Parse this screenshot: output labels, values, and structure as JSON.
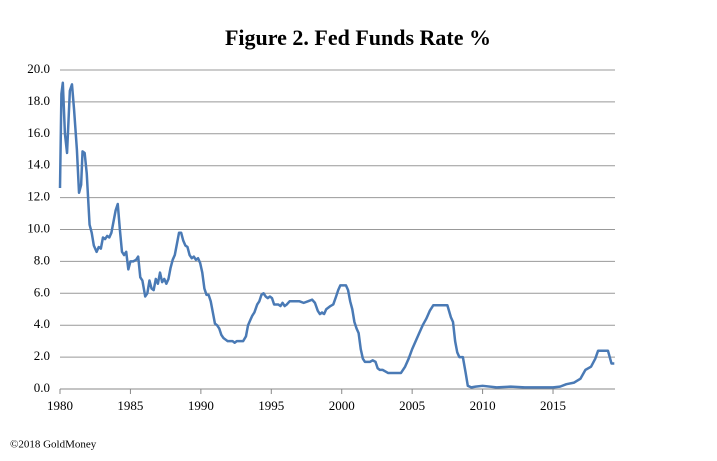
{
  "chart_data": {
    "type": "line",
    "title": "Figure 2. Fed Funds Rate %",
    "footnote": "©2018 GoldMoney",
    "x": [
      1980.0,
      1980.1,
      1980.2,
      1980.35,
      1980.5,
      1980.7,
      1980.85,
      1981.0,
      1981.2,
      1981.35,
      1981.5,
      1981.6,
      1981.75,
      1981.9,
      1982.1,
      1982.25,
      1982.4,
      1982.6,
      1982.75,
      1982.9,
      1983.05,
      1983.2,
      1983.35,
      1983.5,
      1983.65,
      1983.8,
      1983.95,
      1984.1,
      1984.25,
      1984.4,
      1984.55,
      1984.7,
      1984.85,
      1985.0,
      1985.2,
      1985.4,
      1985.55,
      1985.7,
      1985.85,
      1986.05,
      1986.2,
      1986.35,
      1986.5,
      1986.65,
      1986.8,
      1986.95,
      1987.1,
      1987.25,
      1987.4,
      1987.55,
      1987.7,
      1987.85,
      1988.0,
      1988.15,
      1988.3,
      1988.45,
      1988.6,
      1988.75,
      1988.9,
      1989.05,
      1989.2,
      1989.35,
      1989.5,
      1989.65,
      1989.8,
      1989.95,
      1990.1,
      1990.25,
      1990.4,
      1990.55,
      1990.7,
      1990.85,
      1991.0,
      1991.15,
      1991.3,
      1991.45,
      1991.6,
      1991.75,
      1991.9,
      1992.1,
      1992.25,
      1992.4,
      1992.55,
      1992.7,
      1992.85,
      1993.0,
      1993.2,
      1993.35,
      1993.5,
      1993.65,
      1993.8,
      1994.0,
      1994.15,
      1994.3,
      1994.45,
      1994.6,
      1994.75,
      1994.9,
      1995.05,
      1995.2,
      1995.35,
      1995.5,
      1995.65,
      1995.8,
      1995.95,
      1996.1,
      1996.3,
      1996.5,
      1996.8,
      1997.0,
      1997.3,
      1997.6,
      1997.9,
      1998.1,
      1998.3,
      1998.45,
      1998.6,
      1998.75,
      1998.9,
      1999.05,
      1999.2,
      1999.4,
      1999.6,
      1999.75,
      1999.9,
      2000.1,
      2000.3,
      2000.45,
      2000.6,
      2000.75,
      2000.9,
      2001.05,
      2001.2,
      2001.35,
      2001.5,
      2001.65,
      2001.8,
      2002.0,
      2002.2,
      2002.4,
      2002.55,
      2002.7,
      2002.9,
      2003.1,
      2003.3,
      2003.6,
      2003.9,
      2004.2,
      2004.5,
      2004.75,
      2005.0,
      2005.25,
      2005.5,
      2005.75,
      2006.0,
      2006.25,
      2006.5,
      2006.75,
      2007.0,
      2007.25,
      2007.5,
      2007.75,
      2007.9,
      2008.05,
      2008.2,
      2008.35,
      2008.6,
      2008.8,
      2008.95,
      2009.2,
      2009.5,
      2010.0,
      2011.0,
      2012.0,
      2013.0,
      2014.0,
      2015.0,
      2015.5,
      2015.95,
      2016.5,
      2016.95,
      2017.3,
      2017.7,
      2018.0,
      2018.2,
      2018.9,
      2019.15,
      2019.35
    ],
    "series": [
      {
        "name": "Fed Funds Rate",
        "color": "#4a7ab5",
        "values": [
          12.6,
          18.5,
          19.2,
          16,
          14.8,
          18.7,
          19.1,
          17.5,
          15,
          12.3,
          12.8,
          14.9,
          14.8,
          13.5,
          10.3,
          9.8,
          9,
          8.6,
          8.9,
          8.8,
          9.5,
          9.4,
          9.6,
          9.5,
          9.8,
          10.5,
          11.2,
          11.6,
          10,
          8.6,
          8.4,
          8.6,
          7.5,
          8.0,
          8.0,
          8.1,
          8.3,
          7.0,
          6.8,
          5.8,
          6.0,
          6.8,
          6.3,
          6.2,
          6.9,
          6.6,
          7.3,
          6.7,
          6.9,
          6.6,
          6.9,
          7.6,
          8.1,
          8.4,
          9.1,
          9.8,
          9.8,
          9.3,
          9.0,
          8.9,
          8.4,
          8.2,
          8.3,
          8.1,
          8.2,
          7.9,
          7.3,
          6.3,
          5.9,
          5.9,
          5.5,
          4.8,
          4.1,
          4.0,
          3.8,
          3.4,
          3.2,
          3.1,
          3.0,
          3.0,
          3.0,
          2.9,
          3.0,
          3.0,
          3.0,
          3.0,
          3.3,
          4.0,
          4.3,
          4.6,
          4.8,
          5.3,
          5.5,
          5.9,
          6.0,
          5.8,
          5.7,
          5.8,
          5.7,
          5.3,
          5.3,
          5.3,
          5.2,
          5.4,
          5.2,
          5.3,
          5.5,
          5.5,
          5.5,
          5.5,
          5.4,
          5.5,
          5.6,
          5.4,
          4.9,
          4.7,
          4.8,
          4.7,
          5.0,
          5.1,
          5.2,
          5.3,
          5.8,
          6.2,
          6.5,
          6.5,
          6.5,
          6.2,
          5.5,
          5.0,
          4.2,
          3.8,
          3.5,
          2.5,
          1.9,
          1.7,
          1.7,
          1.7,
          1.8,
          1.7,
          1.3,
          1.2,
          1.2,
          1.1,
          1.0,
          1.0,
          1.0,
          1.0,
          1.4,
          1.9,
          2.5,
          3.0,
          3.5,
          4.0,
          4.4,
          4.9,
          5.25,
          5.25,
          5.25,
          5.25,
          5.25,
          4.5,
          4.2,
          3.0,
          2.3,
          2.0,
          2.0,
          1.0,
          0.2,
          0.1,
          0.15,
          0.2,
          0.1,
          0.15,
          0.1,
          0.1,
          0.1,
          0.15,
          0.3,
          0.4,
          0.65,
          1.2,
          1.4,
          1.9,
          2.4,
          2.4,
          1.6,
          1.6
        ]
      }
    ],
    "xlim": [
      1980,
      2019.4
    ],
    "xticks": [
      1980,
      1985,
      1990,
      1995,
      2000,
      2005,
      2010,
      2015
    ],
    "ylim": [
      0,
      20
    ],
    "yticks": [
      {
        "value": 0,
        "label": "0.0"
      },
      {
        "value": 2,
        "label": "2.0"
      },
      {
        "value": 4,
        "label": "4.0"
      },
      {
        "value": 6,
        "label": "6.0"
      },
      {
        "value": 8,
        "label": "8.0"
      },
      {
        "value": 10,
        "label": "10.0"
      },
      {
        "value": 12,
        "label": "12.0"
      },
      {
        "value": 14,
        "label": "14.0"
      },
      {
        "value": 16,
        "label": "16.0"
      },
      {
        "value": 18,
        "label": "18.0"
      },
      {
        "value": 20,
        "label": "20.0"
      }
    ],
    "grid": true
  }
}
